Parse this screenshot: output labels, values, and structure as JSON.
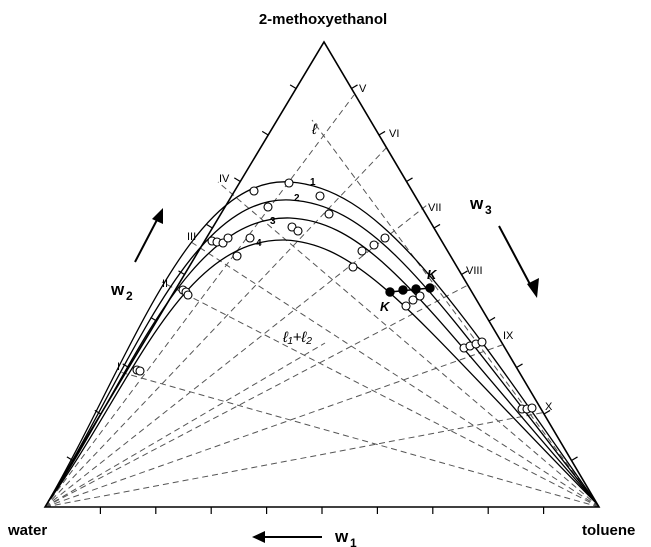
{
  "diagram": {
    "vertex_labels": {
      "top": "2-methoxyethanol",
      "left": "water",
      "right": "toluene"
    },
    "axis_labels": {
      "w1": "w",
      "w1_sub": "1",
      "w2": "w",
      "w2_sub": "2",
      "w3": "w",
      "w3_sub": "3"
    },
    "region_labels": {
      "one_phase": "ℓ",
      "two_phase": "ℓ₁+ℓ₂"
    },
    "critical_label": "K",
    "curve_numbers": [
      "1",
      "2",
      "3",
      "4"
    ],
    "tie_line_labels": [
      "I",
      "II",
      "III",
      "IV",
      "V",
      "VI",
      "VII",
      "VIII",
      "IX",
      "X"
    ]
  }
}
